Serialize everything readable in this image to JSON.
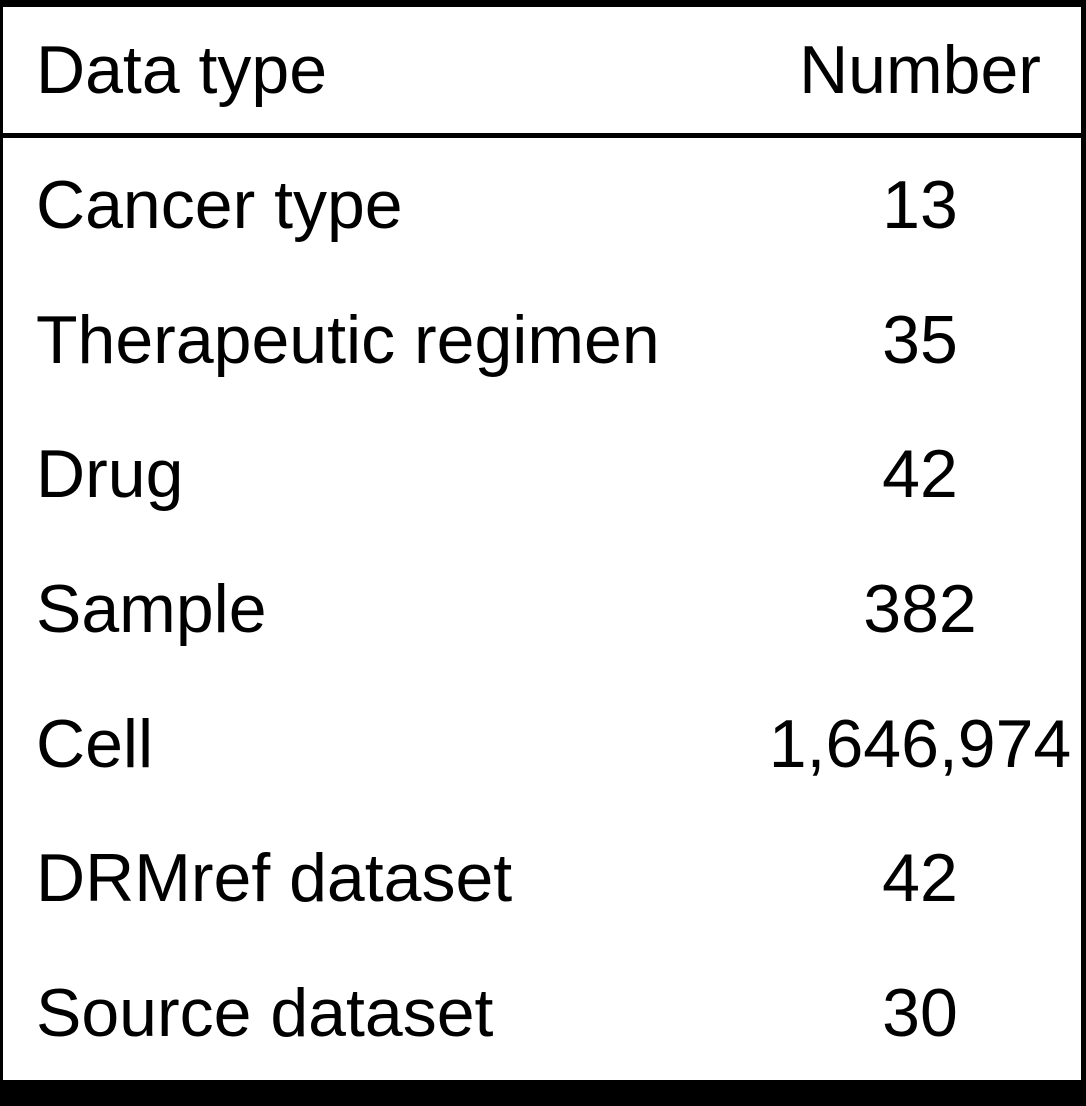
{
  "table": {
    "columns": [
      {
        "label": "Data type"
      },
      {
        "label": "Number"
      }
    ],
    "rows": [
      {
        "type": "Cancer type",
        "number": "13"
      },
      {
        "type": "Therapeutic regimen",
        "number": "35"
      },
      {
        "type": "Drug",
        "number": "42"
      },
      {
        "type": "Sample",
        "number": "382"
      },
      {
        "type": "Cell",
        "number": "1,646,974"
      },
      {
        "type": "DRMref dataset",
        "number": "42"
      },
      {
        "type": "Source dataset",
        "number": "30"
      }
    ]
  },
  "colors": {
    "text": "#000000",
    "border": "#000000",
    "background": "#ffffff"
  }
}
